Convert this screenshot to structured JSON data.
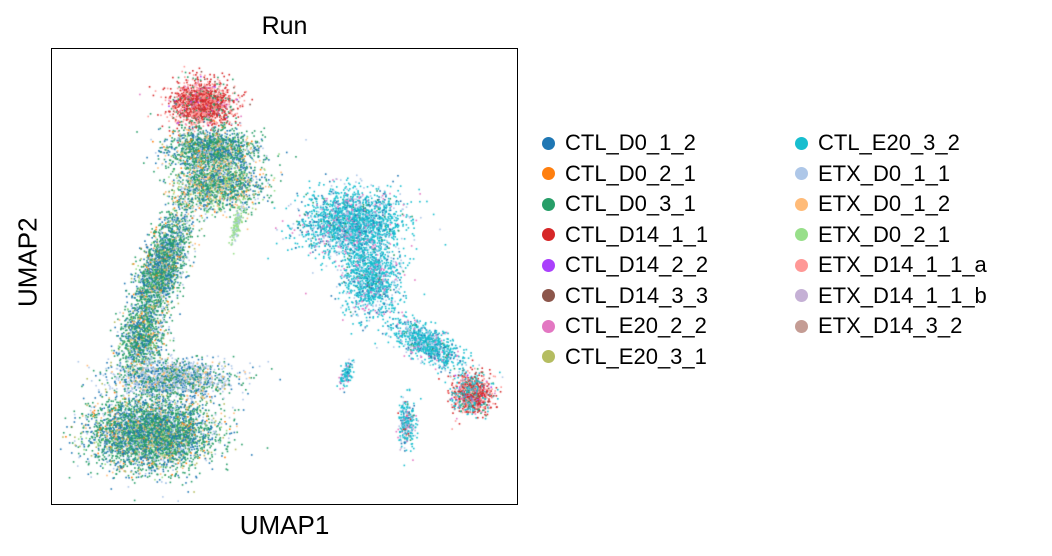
{
  "chart_data": {
    "type": "scatter",
    "title": "Run",
    "xlabel": "UMAP1",
    "ylabel": "UMAP2",
    "grid": false,
    "ticks": "none",
    "legend_placement": "right",
    "legend_columns": 2,
    "series": [
      {
        "name": "CTL_D0_1_2",
        "color": "#1f77b4"
      },
      {
        "name": "CTL_D0_2_1",
        "color": "#ff7f0e"
      },
      {
        "name": "CTL_D0_3_1",
        "color": "#279e68"
      },
      {
        "name": "CTL_D14_1_1",
        "color": "#d62728"
      },
      {
        "name": "CTL_D14_2_2",
        "color": "#aa40fc"
      },
      {
        "name": "CTL_D14_3_3",
        "color": "#8c564b"
      },
      {
        "name": "CTL_E20_2_2",
        "color": "#e377c2"
      },
      {
        "name": "CTL_E20_3_1",
        "color": "#b5bd61"
      },
      {
        "name": "CTL_E20_3_2",
        "color": "#17becf"
      },
      {
        "name": "ETX_D0_1_1",
        "color": "#aec7e8"
      },
      {
        "name": "ETX_D0_1_2",
        "color": "#ffbb78"
      },
      {
        "name": "ETX_D0_2_1",
        "color": "#98df8a"
      },
      {
        "name": "ETX_D14_1_1_a",
        "color": "#ff9896"
      },
      {
        "name": "ETX_D14_1_1_b",
        "color": "#c5b0d5"
      },
      {
        "name": "ETX_D14_3_2",
        "color": "#c49c94"
      }
    ]
  }
}
